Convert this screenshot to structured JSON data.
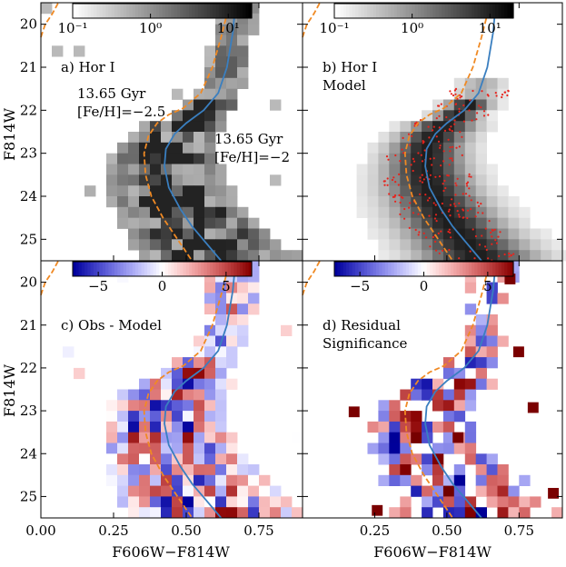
{
  "figure": {
    "xlabel": "F606W−F814W",
    "ylabel": "F814W"
  },
  "colors": {
    "iso_metal_poor": "#f08a24",
    "iso_metal_rich": "#3a7fc0",
    "star_points": "#e8231c"
  },
  "chart_data": [
    {
      "id": "a",
      "type": "heatmap",
      "title": "a) Hor I",
      "xlim": [
        0.0,
        0.9
      ],
      "ylim": [
        25.5,
        19.5
      ],
      "xticks": [
        0.0,
        0.25,
        0.5,
        0.75
      ],
      "yticks": [
        20,
        21,
        22,
        23,
        24,
        25
      ],
      "xlabel": "",
      "ylabel": "F814W",
      "colorbar": {
        "scale": "log",
        "range": [
          0.1,
          20
        ],
        "tick_labels": [
          "10⁻¹",
          "10⁰",
          "10¹"
        ],
        "colormap": "Greys"
      },
      "annotations": [
        {
          "text": "13.65 Gyr",
          "color": "iso_metal_poor"
        },
        {
          "text": "[Fe/H]=−2.5",
          "color": "iso_metal_poor"
        },
        {
          "text": "13.65 Gyr",
          "color": "iso_metal_rich"
        },
        {
          "text": "[Fe/H]=−2",
          "color": "iso_metal_rich"
        }
      ]
    },
    {
      "id": "b",
      "type": "heatmap",
      "title": "b) Hor I",
      "subtitle": "Model",
      "xlim": [
        0.0,
        0.9
      ],
      "ylim": [
        25.5,
        19.5
      ],
      "xticks": [
        0.0,
        0.25,
        0.5,
        0.75
      ],
      "yticks": [
        20,
        21,
        22,
        23,
        24,
        25
      ],
      "colorbar": {
        "scale": "log",
        "range": [
          0.1,
          20
        ],
        "tick_labels": [
          "10⁻¹",
          "10⁰",
          "10¹"
        ],
        "colormap": "Greys"
      },
      "overlay": "observed stars (red points)"
    },
    {
      "id": "c",
      "type": "heatmap",
      "title": "c) Obs - Model",
      "xlim": [
        0.0,
        0.9
      ],
      "ylim": [
        25.5,
        19.5
      ],
      "xticks": [
        0.0,
        0.25,
        0.5,
        0.75
      ],
      "xtick_labels": [
        "0.00",
        "0.25",
        "0.50",
        "0.75"
      ],
      "yticks": [
        20,
        21,
        22,
        23,
        24,
        25
      ],
      "xlabel": "F606W−F814W",
      "ylabel": "F814W",
      "colorbar": {
        "scale": "linear",
        "range": [
          -7,
          7
        ],
        "tick_labels": [
          "−5",
          "0",
          "5"
        ],
        "colormap": "seismic"
      }
    },
    {
      "id": "d",
      "type": "heatmap",
      "title": "d) Residual",
      "subtitle": "Significance",
      "xlim": [
        0.0,
        0.9
      ],
      "ylim": [
        25.5,
        19.5
      ],
      "xticks": [
        0.0,
        0.25,
        0.5,
        0.75
      ],
      "xtick_labels": [
        "0.25",
        "0.50",
        "0.75"
      ],
      "yticks": [
        20,
        21,
        22,
        23,
        24,
        25
      ],
      "xlabel": "F606W−F814W",
      "colorbar": {
        "scale": "linear",
        "range": [
          -7,
          7
        ],
        "tick_labels": [
          "−5",
          "0",
          "5"
        ],
        "colormap": "seismic"
      }
    }
  ],
  "isochrones": {
    "metal_poor": {
      "label": "13.65 Gyr [Fe/H]=−2.5",
      "points": [
        [
          0.65,
          19.5
        ],
        [
          0.62,
          20.3
        ],
        [
          0.59,
          21.0
        ],
        [
          0.55,
          21.6
        ],
        [
          0.49,
          21.95
        ],
        [
          0.44,
          22.1
        ],
        [
          0.4,
          22.3
        ],
        [
          0.37,
          22.6
        ],
        [
          0.355,
          23.0
        ],
        [
          0.36,
          23.5
        ],
        [
          0.38,
          24.0
        ],
        [
          0.42,
          24.5
        ],
        [
          0.46,
          24.9
        ],
        [
          0.5,
          25.3
        ],
        [
          0.52,
          25.5
        ]
      ]
    },
    "metal_poor_giant": {
      "points": [
        [
          0.0,
          20.3
        ],
        [
          0.015,
          20.0
        ],
        [
          0.04,
          19.75
        ],
        [
          0.06,
          19.5
        ]
      ]
    },
    "metal_rich": {
      "label": "13.65 Gyr [Fe/H]=−2",
      "points": [
        [
          0.67,
          19.5
        ],
        [
          0.66,
          20.2
        ],
        [
          0.64,
          21.0
        ],
        [
          0.61,
          21.6
        ],
        [
          0.56,
          22.0
        ],
        [
          0.5,
          22.3
        ],
        [
          0.46,
          22.55
        ],
        [
          0.43,
          22.9
        ],
        [
          0.425,
          23.3
        ],
        [
          0.44,
          23.8
        ],
        [
          0.48,
          24.3
        ],
        [
          0.52,
          24.7
        ],
        [
          0.57,
          25.1
        ],
        [
          0.62,
          25.5
        ]
      ]
    }
  }
}
